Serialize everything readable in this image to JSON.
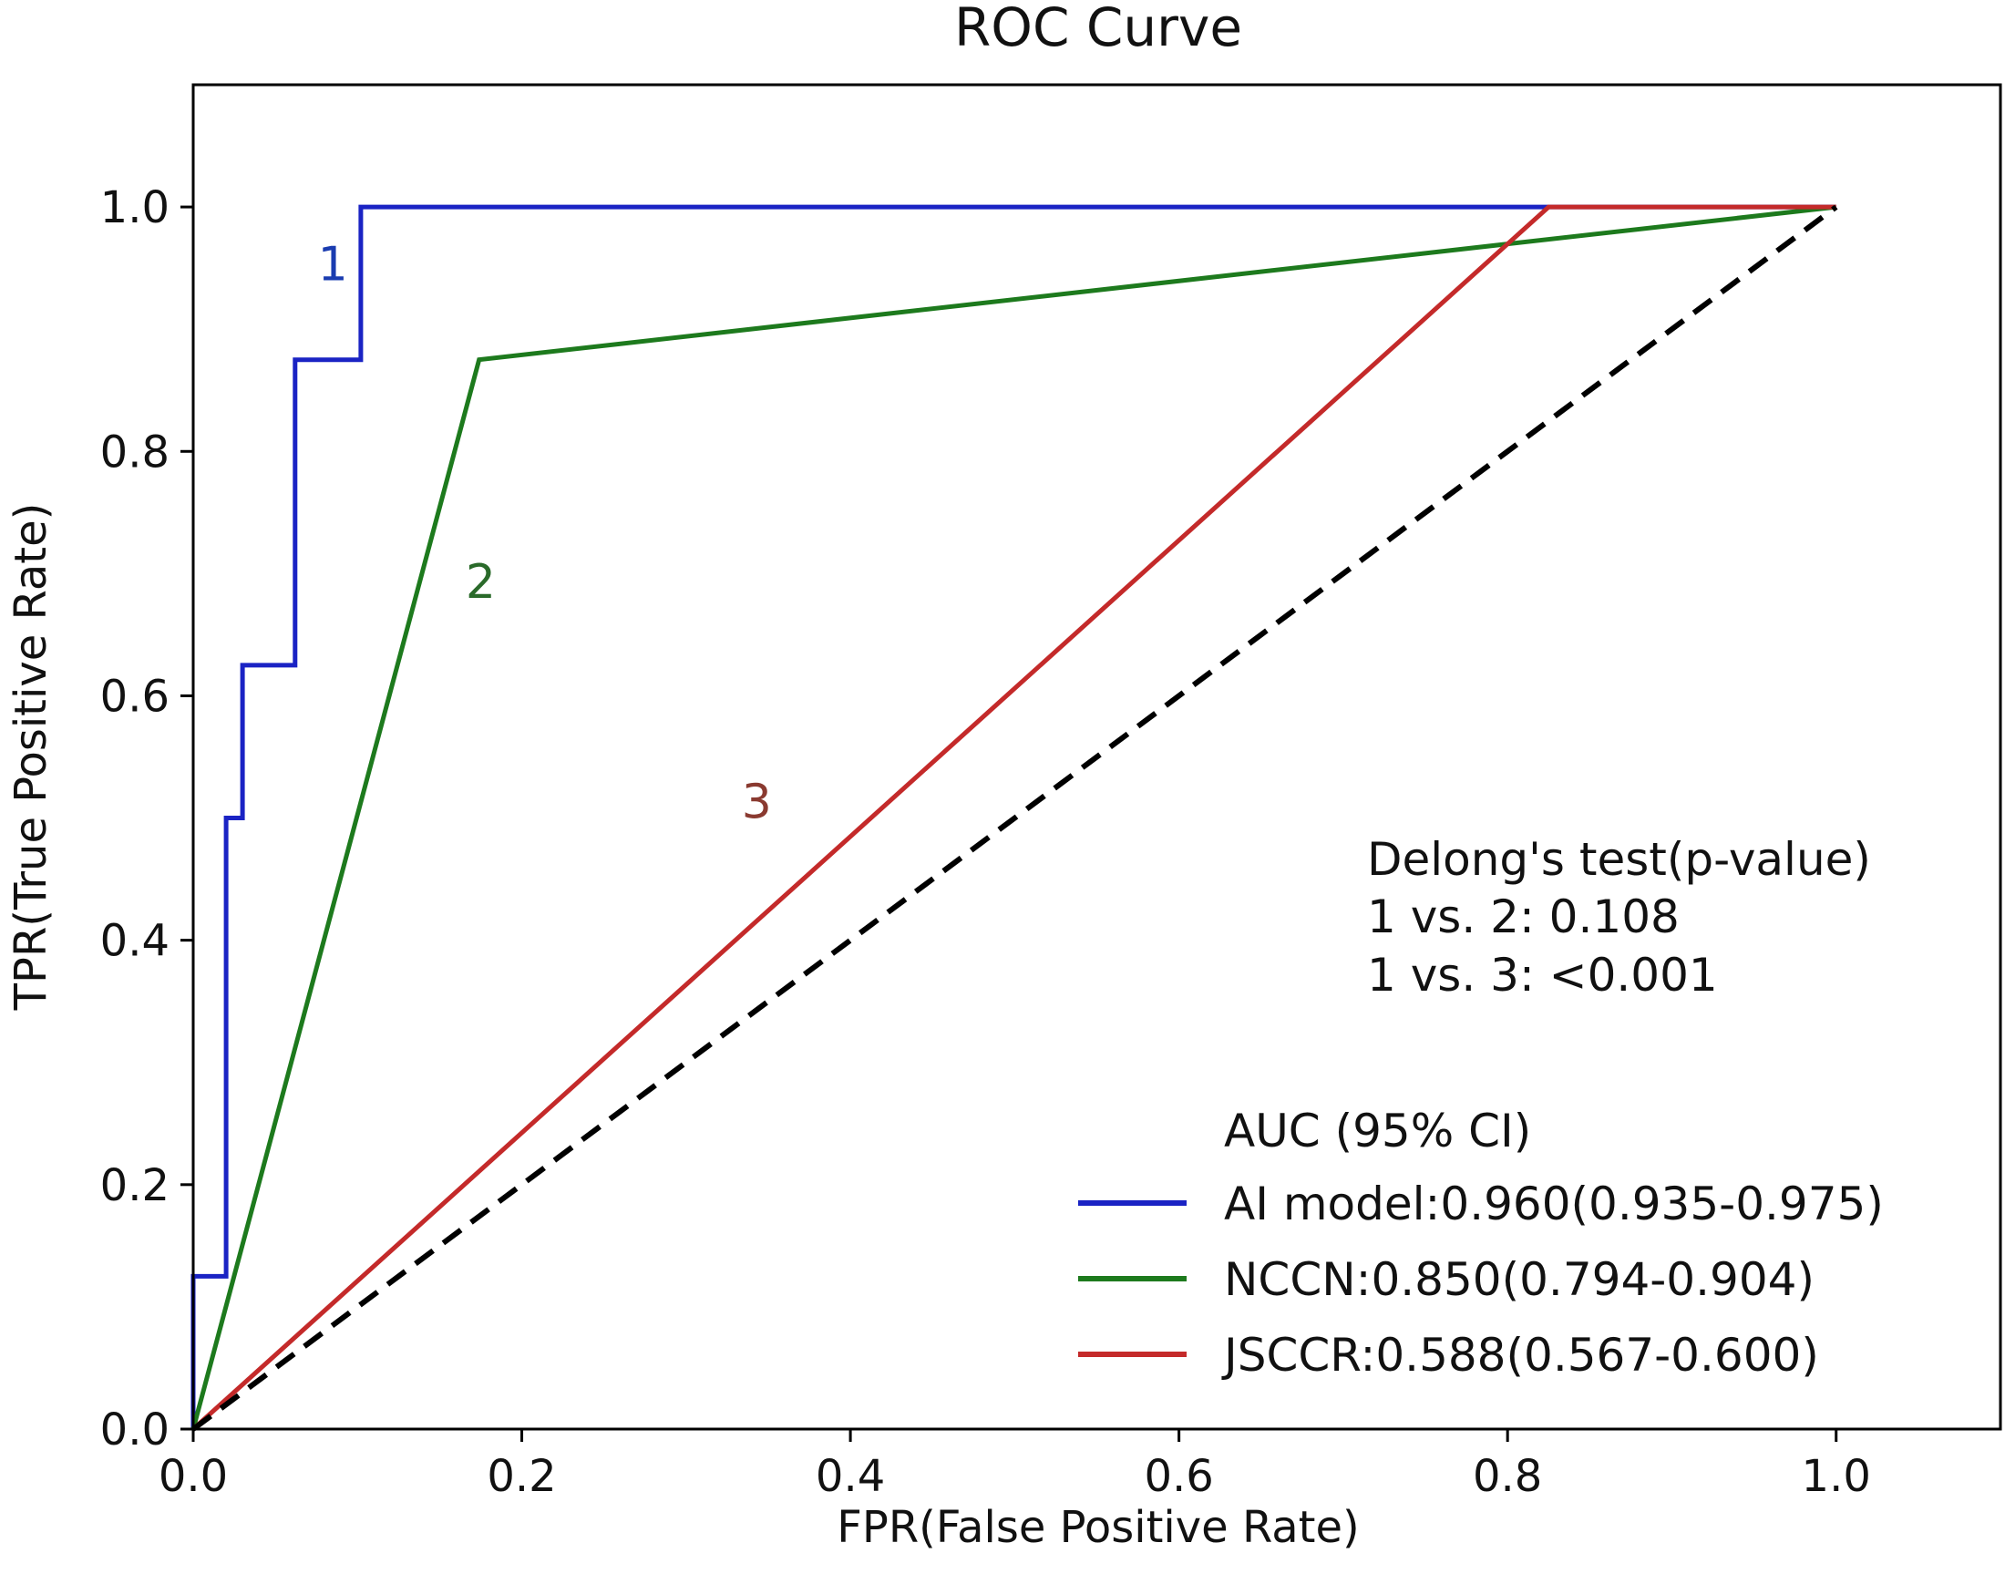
{
  "chart_data": {
    "type": "line",
    "title": "ROC Curve",
    "xlabel": "FPR(False Positive Rate)",
    "ylabel": "TPR(True Positive Rate)",
    "xlim": [
      0,
      1.1
    ],
    "ylim": [
      0,
      1.1
    ],
    "xticks": [
      {
        "value": 0.0,
        "label": "0.0"
      },
      {
        "value": 0.2,
        "label": "0.2"
      },
      {
        "value": 0.4,
        "label": "0.4"
      },
      {
        "value": 0.6,
        "label": "0.6"
      },
      {
        "value": 0.8,
        "label": "0.8"
      },
      {
        "value": 1.0,
        "label": "1.0"
      }
    ],
    "yticks": [
      {
        "value": 0.0,
        "label": "0.0"
      },
      {
        "value": 0.2,
        "label": "0.2"
      },
      {
        "value": 0.4,
        "label": "0.4"
      },
      {
        "value": 0.6,
        "label": "0.6"
      },
      {
        "value": 0.8,
        "label": "0.8"
      },
      {
        "value": 1.0,
        "label": "1.0"
      }
    ],
    "grid": false,
    "series": [
      {
        "name": "AI model:0.960(0.935-0.975)",
        "color": "#1a23c4",
        "x": [
          0,
          0,
          0.02,
          0.02,
          0.03,
          0.03,
          0.062,
          0.062,
          0.102,
          0.102,
          1.0
        ],
        "y": [
          0,
          0.125,
          0.125,
          0.5,
          0.5,
          0.625,
          0.625,
          0.875,
          0.875,
          1.0,
          1.0
        ]
      },
      {
        "name": "NCCN:0.850(0.794-0.904)",
        "color": "#1d7a1d",
        "x": [
          0,
          0.174,
          1.0
        ],
        "y": [
          0,
          0.875,
          1.0
        ]
      },
      {
        "name": "JSCCR:0.588(0.567-0.600)",
        "color": "#c42a2a",
        "x": [
          0,
          0.825,
          1.0
        ],
        "y": [
          0,
          1.0,
          1.0
        ]
      },
      {
        "name": "chance",
        "color": "#000000",
        "dashed": true,
        "x": [
          0,
          1.0
        ],
        "y": [
          0,
          1.0
        ]
      }
    ],
    "curve_numbers": [
      {
        "label": "1",
        "color": "#1a3cb0",
        "x": 0.085,
        "y": 0.94
      },
      {
        "label": "2",
        "color": "#2a6a2a",
        "x": 0.175,
        "y": 0.68
      },
      {
        "label": "3",
        "color": "#8a3a30",
        "x": 0.343,
        "y": 0.5
      }
    ],
    "annotation": {
      "lines": [
        "Delong's test(p-value)",
        "1 vs. 2: 0.108",
        "1 vs. 3: <0.001"
      ]
    },
    "legend": {
      "title": "AUC (95% CI)",
      "position": "lower-right",
      "entries": [
        {
          "label": "AI model:0.960(0.935-0.975)",
          "color": "#1a23c4"
        },
        {
          "label": "NCCN:0.850(0.794-0.904)",
          "color": "#1d7a1d"
        },
        {
          "label": "JSCCR:0.588(0.567-0.600)",
          "color": "#c42a2a"
        }
      ]
    }
  }
}
